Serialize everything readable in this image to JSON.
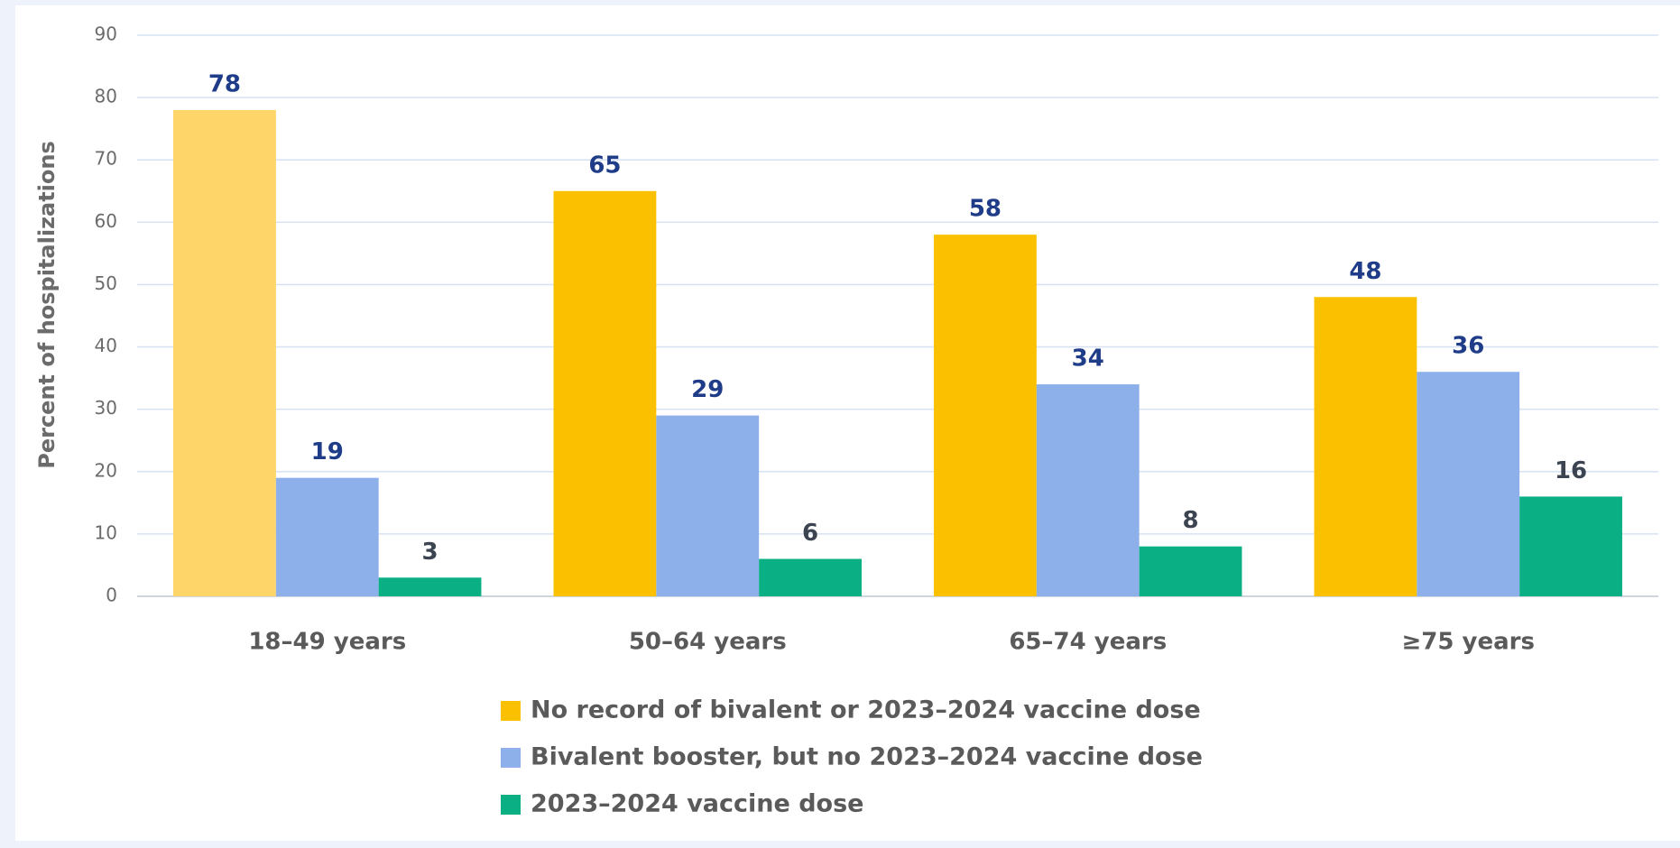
{
  "chart_data": {
    "type": "bar",
    "y_label": "Percent of hospitalizations",
    "categories": [
      "18–49 years",
      "50–64 years",
      "65–74 years",
      "≥75 years"
    ],
    "series": [
      {
        "name": "No record of bivalent or 2023–2024 vaccine dose",
        "color": "#fbc000",
        "colors": [
          "#fdd568",
          "#fbc000",
          "#fbc000",
          "#fbc000"
        ],
        "label_color": "#1f3c88",
        "values": [
          78,
          65,
          58,
          48
        ]
      },
      {
        "name": "Bivalent booster, but no 2023–2024 vaccine dose",
        "color": "#8eb0ea",
        "label_color": "#1f3c88",
        "values": [
          19,
          29,
          34,
          36
        ]
      },
      {
        "name": "2023–2024 vaccine dose",
        "color": "#0aaf84",
        "label_color": "#3b4450",
        "values": [
          3,
          6,
          8,
          16
        ]
      }
    ],
    "ylim": [
      0,
      90
    ],
    "yticks": [
      0,
      10,
      20,
      30,
      40,
      50,
      60,
      70,
      80,
      90
    ],
    "grid": true,
    "legend": "bottom"
  }
}
